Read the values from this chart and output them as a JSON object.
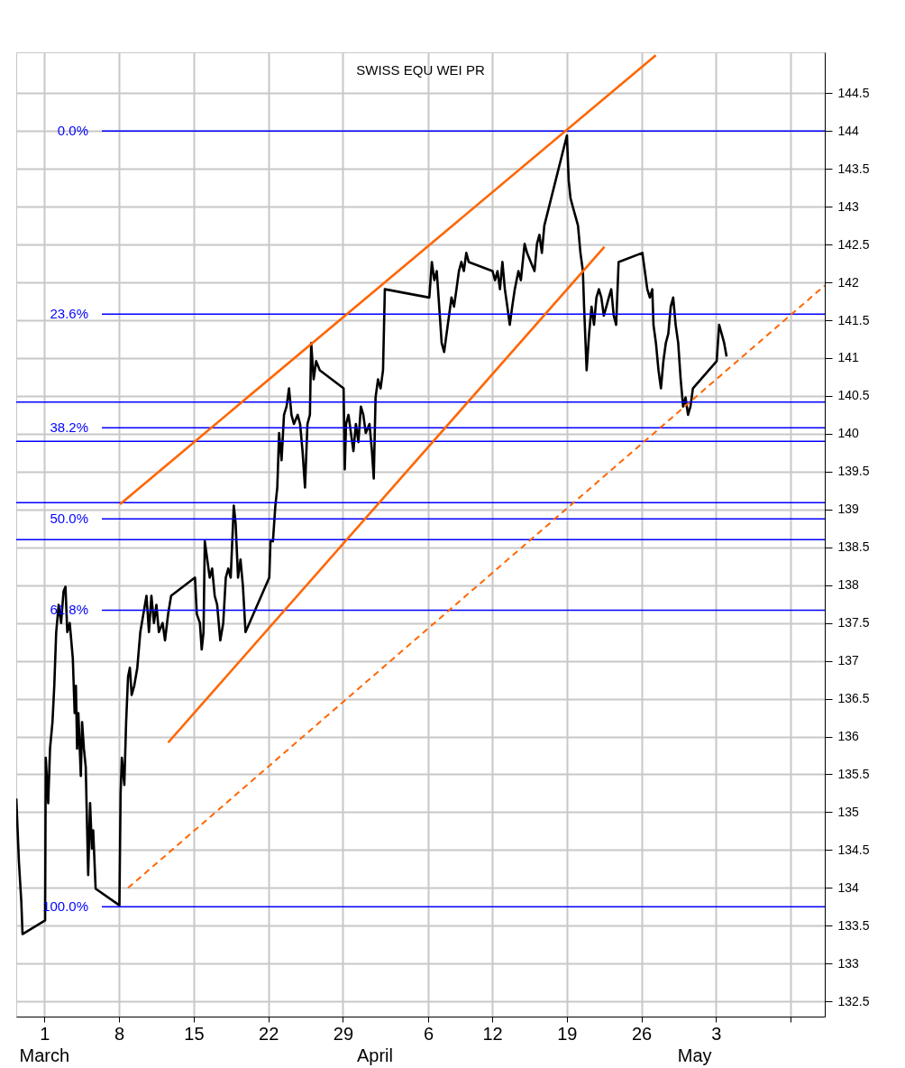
{
  "chart_data": {
    "type": "line",
    "title": "SWISS EQU WEI PR",
    "x": [
      "--02-26T08:38",
      "--02-26T14:24",
      "--02-26T19:55",
      "--02-26T22:34",
      "--03-01T01:26",
      "--03-01T02:53",
      "--03-01T08:24",
      "--03-01T12:29",
      "--03-01T18:00",
      "--03-01T22:05",
      "--03-02T02:24",
      "--03-02T07:55",
      "--03-02T13:26",
      "--03-02T18:58",
      "--03-02T23:17",
      "--03-03T03:22",
      "--03-03T08:53",
      "--03-03T15:50",
      "--03-03T19:55",
      "--03-03T22:48",
      "--03-04T01:26",
      "--03-04T04:19",
      "--03-04T09:50",
      "--03-04T12:43",
      "--03-04T16:48",
      "--03-04T20:53",
      "--03-05T02:24",
      "--03-05T06:43",
      "--03-05T10:48",
      "--03-05T13:41",
      "--03-05T19:12",
      "--03-08T00:43",
      "--03-08T03:22",
      "--03-08T06:14",
      "--03-08T11:46",
      "--03-08T15:50",
      "--03-08T20:10",
      "--03-09T00:14",
      "--03-09T04:19",
      "--03-09T10:05",
      "--03-09T17:02",
      "--03-09T23:46",
      "--03-10T06:43",
      "--03-10T13:41",
      "--03-10T19:12",
      "--03-11T00:43",
      "--03-11T06:29",
      "--03-11T12:00",
      "--03-11T17:31",
      "--03-12T01:55",
      "--03-12T07:26",
      "--03-12T14:24",
      "--03-12T21:07",
      "--03-15T02:53",
      "--03-15T06:58",
      "--03-15T13:55",
      "--03-15T18:00",
      "--03-15T22:05",
      "--03-16T00:58",
      "--03-16T06:29",
      "--03-16T12:00",
      "--03-16T17:31",
      "--03-16T23:17",
      "--03-17T04:48",
      "--03-17T11:46",
      "--03-17T18:29",
      "--03-18T00:14",
      "--03-18T05:46",
      "--03-18T11:17",
      "--03-18T18:14",
      "--03-18T22:19",
      "--03-19T03:50",
      "--03-19T09:22",
      "--03-19T14:53",
      "--03-19T20:38",
      "--03-22T02:10",
      "--03-22T04:48",
      "--03-22T10:19",
      "--03-22T15:50",
      "--03-22T20:10",
      "--03-23T00:14",
      "--03-23T05:46",
      "--03-23T11:17",
      "--03-23T17:02",
      "--03-23T22:34",
      "--03-24T04:05",
      "--03-24T09:36",
      "--03-24T18:00",
      "--03-24T23:31",
      "--03-25T05:02",
      "--03-25T10:34",
      "--03-25T16:05",
      "--03-25T21:36",
      "--03-26T00:29",
      "--03-26T06:00",
      "--03-26T11:31",
      "--03-26T19:55",
      "--03-29T01:26",
      "--03-29T04:05",
      "--03-29T06:58",
      "--03-29T12:29",
      "--03-29T18:00",
      "--03-29T23:31",
      "--03-30T05:02",
      "--03-30T10:48",
      "--03-30T16:19",
      "--03-30T21:50",
      "--03-31T03:22",
      "--03-31T11:46",
      "--03-31T17:17",
      "--03-31T21:22",
      "--04-01T01:26",
      "--04-01T06:58",
      "--04-01T12:43",
      "--04-01T18:14",
      "--04-01T22:19",
      "--04-06T02:24",
      "--04-06T08:10",
      "--04-06T13:41",
      "--04-06T19:12",
      "--04-07T00:43",
      "--04-07T06:14",
      "--04-07T11:46",
      "--04-07T17:17",
      "--04-07T22:48",
      "--04-08T04:19",
      "--04-08T10:05",
      "--04-08T15:36",
      "--04-08T21:07",
      "--04-09T02:38",
      "--04-09T08:10",
      "--04-09T13:41",
      "--04-09T19:12",
      "--04-12T00:43",
      "--04-12T06:29",
      "--04-12T12:00",
      "--04-12T17:31",
      "--04-12T23:02",
      "--04-13T04:34",
      "--04-13T10:05",
      "--04-13T15:36",
      "--04-13T21:07",
      "--04-14T02:53",
      "--04-14T11:02",
      "--04-14T16:34",
      "--04-15T00:58",
      "--04-15T06:29",
      "--04-15T14:53",
      "--04-15T23:17",
      "--04-16T04:48",
      "--04-16T10:19",
      "--04-16T15:50",
      "--04-16T21:22",
      "--04-19T00:14",
      "--04-19T04:19",
      "--04-19T08:24",
      "--04-19T13:55",
      "--04-19T19:41",
      "--04-20T01:12",
      "--04-20T06:43",
      "--04-20T12:14",
      "--04-20T14:53",
      "--04-20T20:38",
      "--04-21T02:10",
      "--04-21T07:41",
      "--04-21T13:12",
      "--04-21T18:43",
      "--04-22T00:14",
      "--04-22T05:46",
      "--04-22T11:17",
      "--04-22T17:02",
      "--04-22T22:34",
      "--04-23T04:05",
      "--04-23T09:36",
      "--04-23T15:07",
      "--04-23T20:38",
      "--04-26T02:10",
      "--04-26T07:41",
      "--04-26T13:12",
      "--04-26T18:58",
      "--04-27T00:29",
      "--04-27T03:07",
      "--04-27T08:38",
      "--04-27T14:24",
      "--04-27T19:55",
      "--04-28T01:26",
      "--04-28T06:58",
      "--04-28T12:29",
      "--04-28T18:00",
      "--04-28T23:31",
      "--04-29T05:02",
      "--04-29T10:48",
      "--04-29T16:19",
      "--04-29T21:50",
      "--04-30T03:22",
      "--04-30T08:53",
      "--04-30T14:24",
      "--04-30T19:55",
      "--05-03T01:26",
      "--05-03T06:58",
      "--05-03T12:43",
      "--05-03T18:14",
      "--05-03T23:46"
    ],
    "series": [
      {
        "color": "#000000",
        "values": [
          135.18,
          134.35,
          133.81,
          133.39,
          133.57,
          135.72,
          135.12,
          135.84,
          136.19,
          136.67,
          137.38,
          137.74,
          137.5,
          137.92,
          137.98,
          137.38,
          137.5,
          137.03,
          136.31,
          136.67,
          135.84,
          136.31,
          135.48,
          136.19,
          135.84,
          135.6,
          134.17,
          135.12,
          134.52,
          134.76,
          133.99,
          133.77,
          135.24,
          135.72,
          135.36,
          136.19,
          136.79,
          136.91,
          136.55,
          136.67,
          136.91,
          137.38,
          137.62,
          137.86,
          137.38,
          137.86,
          137.5,
          137.74,
          137.38,
          137.5,
          137.27,
          137.62,
          137.86,
          138.1,
          137.62,
          137.5,
          137.15,
          137.38,
          138.58,
          138.34,
          138.1,
          138.22,
          137.86,
          137.74,
          137.27,
          137.5,
          138.1,
          138.22,
          138.1,
          139.05,
          138.82,
          138.1,
          138.34,
          137.98,
          137.38,
          138.1,
          138.58,
          138.58,
          139.05,
          139.29,
          140.01,
          139.65,
          140.25,
          140.36,
          140.6,
          140.25,
          140.13,
          140.25,
          140.13,
          139.77,
          139.29,
          140.13,
          140.25,
          141.2,
          140.72,
          140.96,
          140.84,
          140.6,
          139.53,
          140.13,
          140.25,
          140.01,
          139.77,
          140.13,
          139.89,
          140.36,
          140.25,
          140.01,
          140.13,
          139.77,
          139.41,
          140.48,
          140.72,
          140.6,
          140.84,
          141.91,
          141.8,
          142.27,
          142.03,
          142.15,
          141.68,
          141.2,
          141.08,
          141.32,
          141.56,
          141.8,
          141.68,
          141.91,
          142.15,
          142.27,
          142.15,
          142.39,
          142.27,
          142.15,
          142.03,
          142.15,
          141.91,
          142.27,
          141.91,
          141.68,
          141.44,
          141.68,
          141.91,
          142.15,
          142.03,
          142.51,
          142.39,
          142.27,
          142.15,
          142.51,
          142.63,
          142.39,
          142.75,
          143.94,
          143.34,
          143.11,
          142.99,
          142.87,
          142.75,
          142.39,
          142.15,
          141.68,
          140.84,
          141.32,
          141.68,
          141.44,
          141.8,
          141.91,
          141.8,
          141.56,
          141.68,
          141.8,
          141.91,
          141.56,
          141.44,
          142.27,
          142.39,
          142.15,
          141.91,
          141.8,
          141.91,
          141.44,
          141.2,
          140.84,
          140.6,
          140.96,
          141.2,
          141.32,
          141.68,
          141.8,
          141.44,
          141.2,
          140.72,
          140.36,
          140.48,
          140.25,
          140.36,
          140.6,
          140.96,
          141.44,
          141.32,
          141.2,
          141.02
        ]
      },
      {
        "type": "line",
        "color": "#ff6600",
        "x": [
          "--03-08T02:10",
          "--04-27T08:24"
        ],
        "values": [
          139.07,
          145.0
        ]
      },
      {
        "type": "line",
        "color": "#ff6600",
        "x": [
          "--03-12T14:24",
          "--04-22T12:43"
        ],
        "values": [
          135.92,
          142.47
        ]
      },
      {
        "type": "line",
        "color": "#ff6600",
        "line_style": "dashed",
        "x": [
          "--03-08T20:10",
          "--05-13T04:48"
        ],
        "values": [
          134.0,
          141.96
        ]
      }
    ],
    "xlim": [
      "--02-26T08:24",
      "--05-13T04:48"
    ],
    "xticks": [
      {
        "value": "--03-01",
        "label": "1"
      },
      {
        "value": "--03-08",
        "label": "8"
      },
      {
        "value": "--03-15",
        "label": "15"
      },
      {
        "value": "--03-22",
        "label": "22"
      },
      {
        "value": "--03-29",
        "label": "29"
      },
      {
        "value": "--04-06",
        "label": "6"
      },
      {
        "value": "--04-12",
        "label": "12"
      },
      {
        "value": "--04-19",
        "label": "19"
      },
      {
        "value": "--04-26",
        "label": "26"
      },
      {
        "value": "--05-03",
        "label": "3"
      },
      {
        "value": "--05-10",
        "label": null
      }
    ],
    "x2lim": [
      "--02-26T08:24",
      "--05-13T04:48"
    ],
    "x2ticks": [
      {
        "value": "--03-01",
        "label": "March"
      },
      {
        "value": "--04-01",
        "label": "April"
      },
      {
        "value": "--05-01",
        "label": "May"
      }
    ],
    "ylim": [
      132.3,
      145.04
    ],
    "yticks": [
      132.5,
      133.0,
      133.5,
      134.0,
      134.5,
      135.0,
      135.5,
      136.0,
      136.5,
      137.0,
      137.5,
      138.0,
      138.5,
      139.0,
      139.5,
      140.0,
      140.5,
      141.0,
      141.5,
      142.0,
      142.5,
      143.0,
      143.5,
      144.0,
      144.5
    ],
    "grid": true,
    "ref_lines": [
      {
        "axis": "y",
        "value": 144.0,
        "color": "#0000ff"
      },
      {
        "axis": "y",
        "value": 141.58,
        "color": "#0000ff"
      },
      {
        "axis": "y",
        "value": 140.08,
        "color": "#0000ff"
      },
      {
        "axis": "y",
        "value": 138.875,
        "color": "#0000ff"
      },
      {
        "axis": "y",
        "value": 137.67,
        "color": "#0000ff"
      },
      {
        "axis": "y",
        "value": 133.75,
        "color": "#0000ff"
      },
      {
        "axis": "y",
        "value": 140.42,
        "color": "#0000ff"
      },
      {
        "axis": "y",
        "value": 139.9,
        "color": "#0000ff"
      },
      {
        "axis": "y",
        "value": 139.09,
        "color": "#0000ff"
      },
      {
        "axis": "y",
        "value": 138.6,
        "color": "#0000ff"
      }
    ],
    "annotations": [
      "0.0%",
      "23.6%",
      "38.2%",
      "50.0%",
      "61.8%",
      "100.0%"
    ]
  }
}
